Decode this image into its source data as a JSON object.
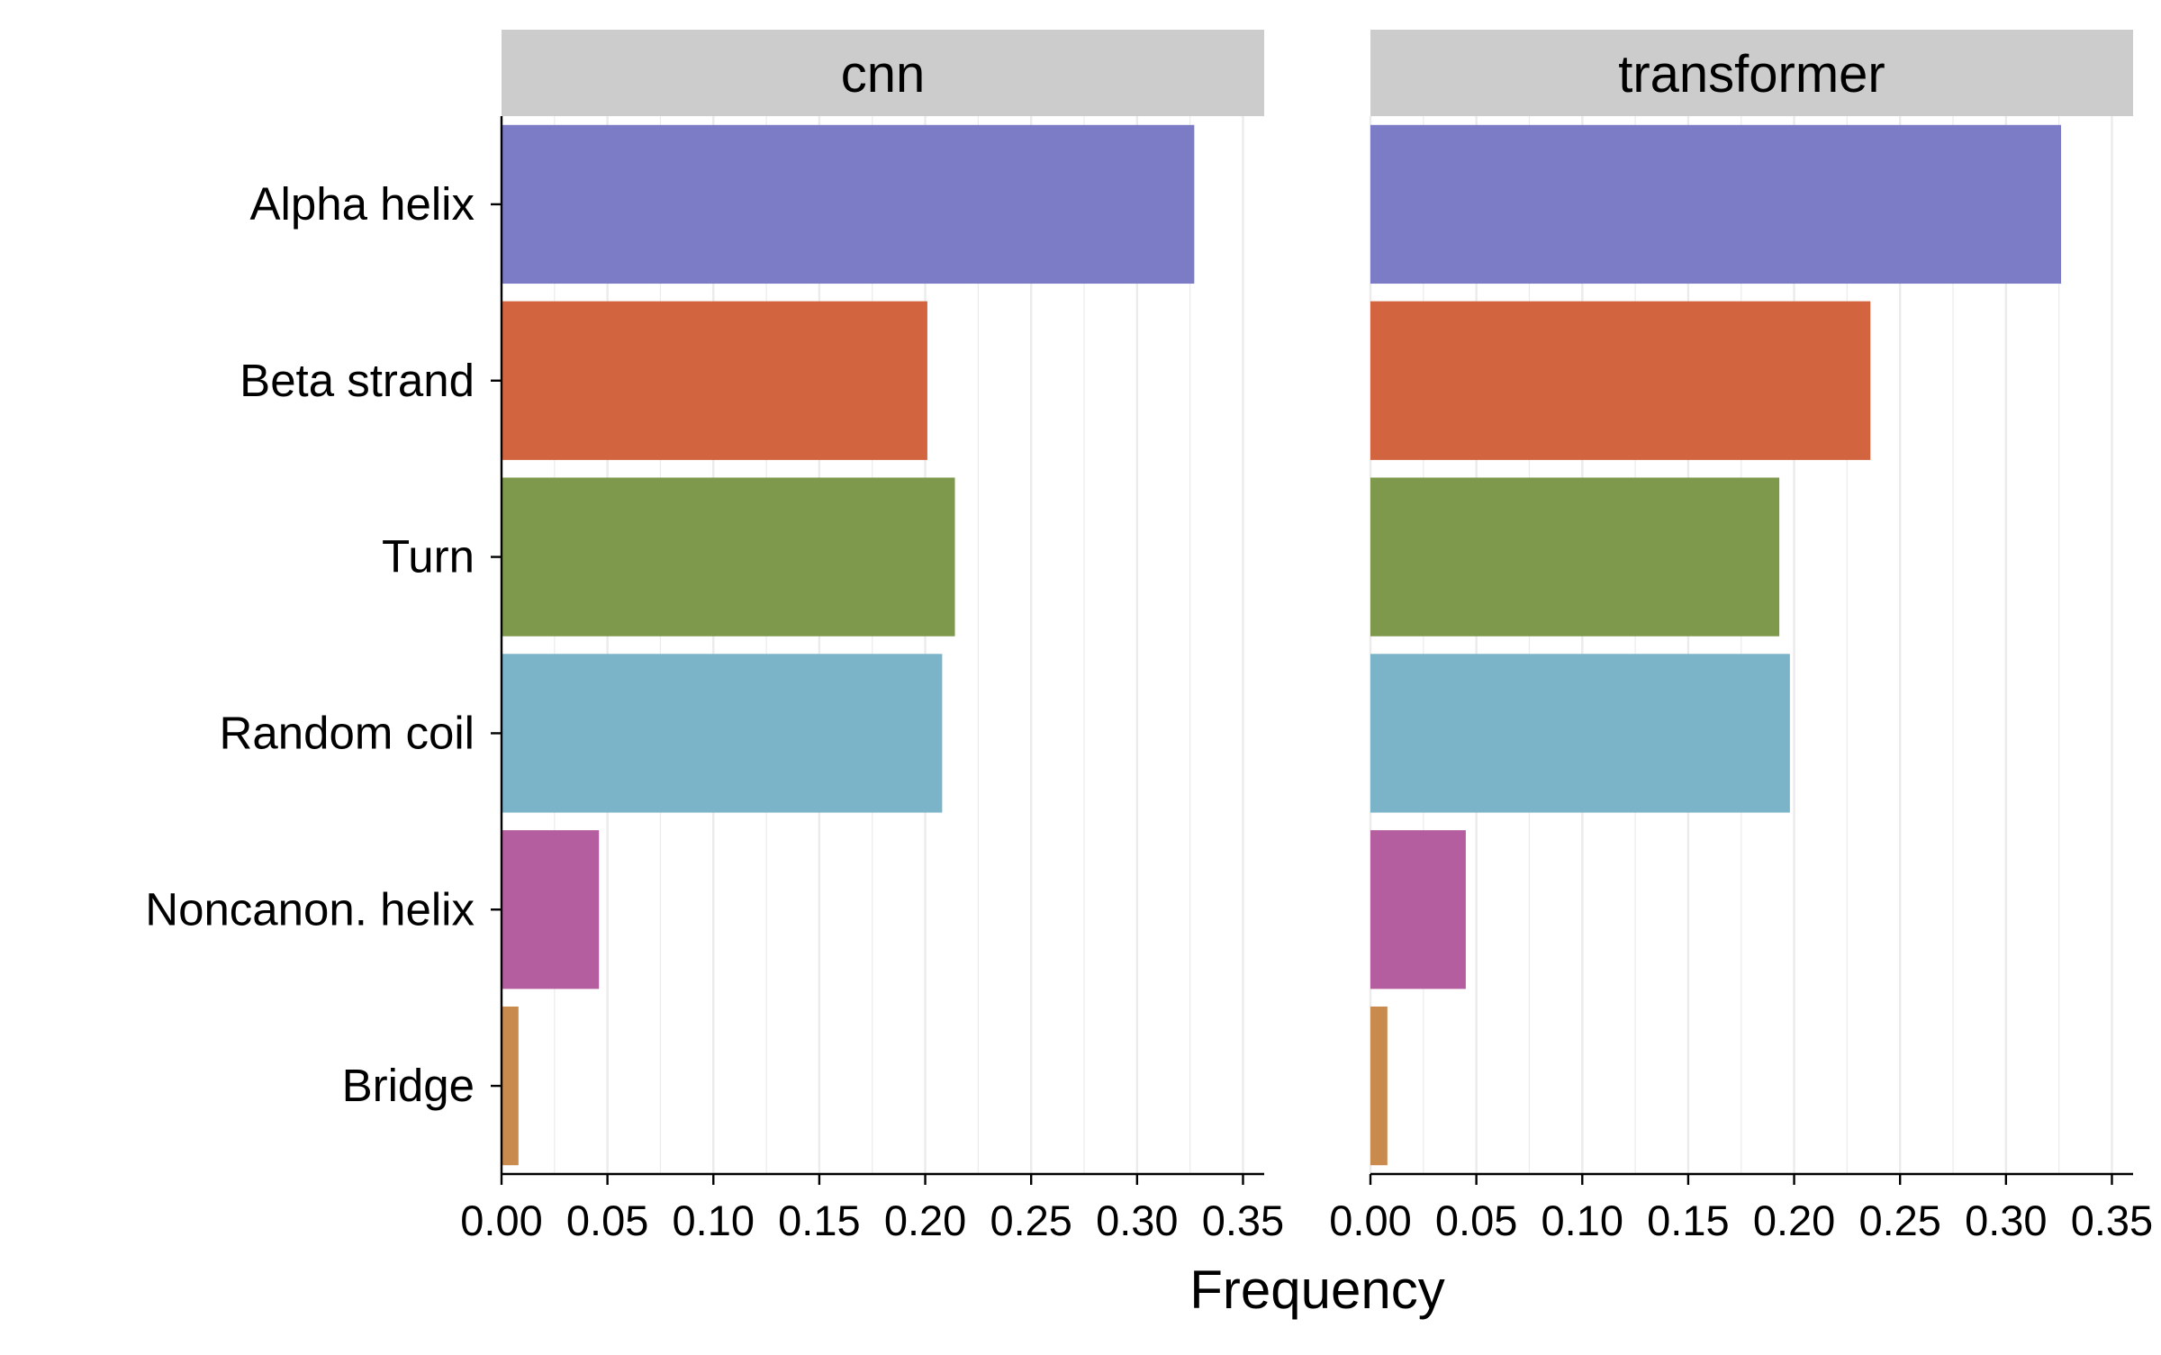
{
  "chart_data": {
    "type": "bar",
    "orientation": "horizontal",
    "facets": [
      "cnn",
      "transformer"
    ],
    "categories": [
      "Alpha helix",
      "Beta strand",
      "Turn",
      "Random coil",
      "Noncanon. helix",
      "Bridge"
    ],
    "colors": [
      "#7b7bc6",
      "#d2643f",
      "#7e994c",
      "#7bb3c9",
      "#b45d9f",
      "#c98a4e"
    ],
    "series": [
      {
        "facet": "cnn",
        "values": [
          0.327,
          0.201,
          0.214,
          0.208,
          0.046,
          0.008
        ]
      },
      {
        "facet": "transformer",
        "values": [
          0.326,
          0.236,
          0.193,
          0.198,
          0.045,
          0.008
        ]
      }
    ],
    "xlabel": "Frequency",
    "ylabel": "",
    "xticks": [
      "0.00",
      "0.05",
      "0.10",
      "0.15",
      "0.20",
      "0.25",
      "0.30",
      "0.35"
    ],
    "xlim": [
      0,
      0.36
    ],
    "grid": "vertical major and minor",
    "legend": "none"
  }
}
